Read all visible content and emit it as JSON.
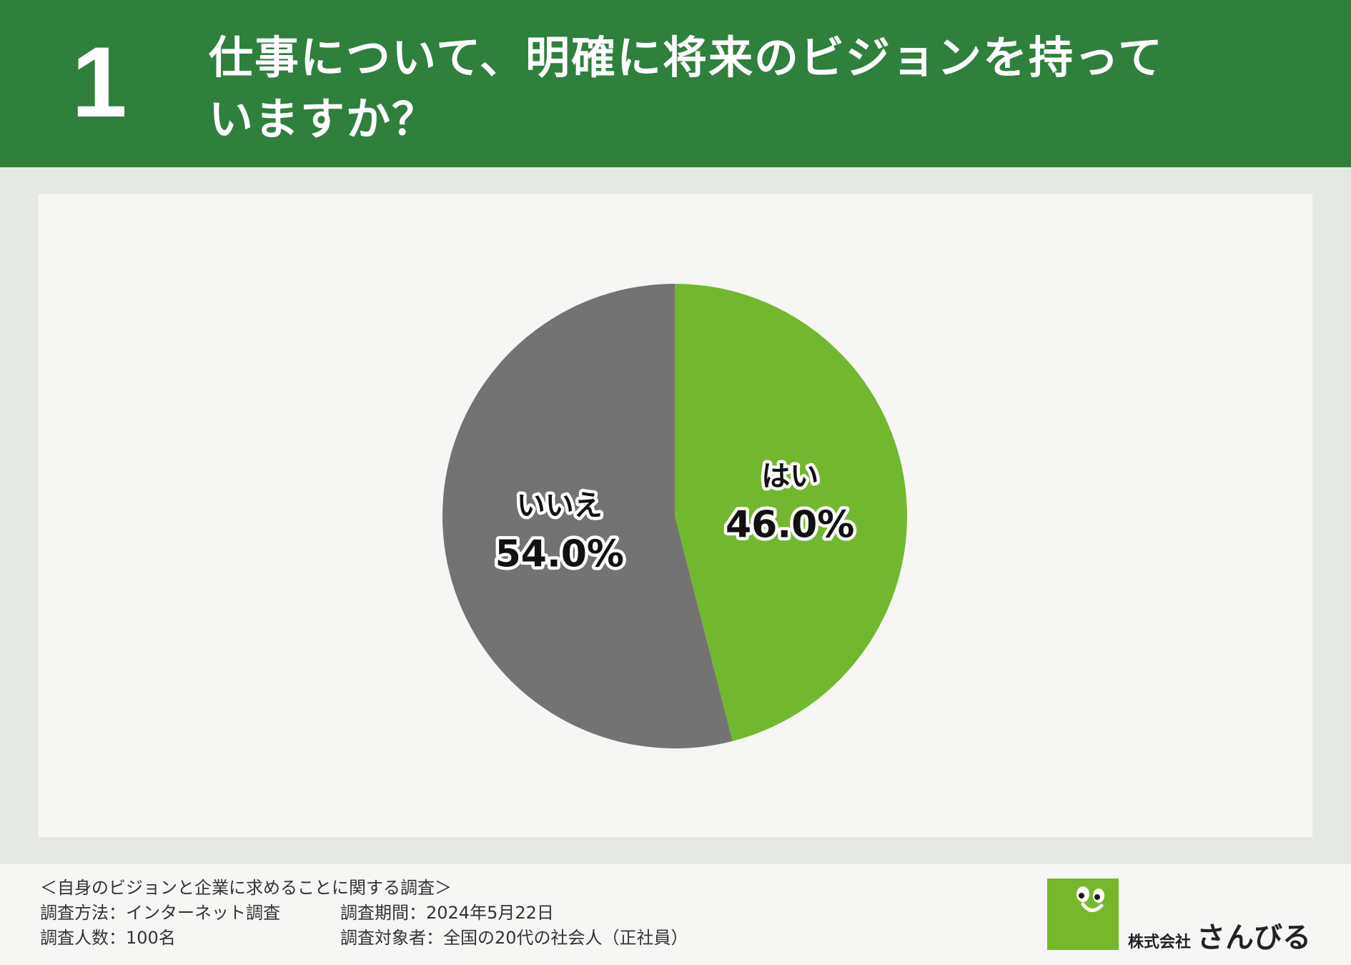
{
  "header": {
    "number": "1",
    "question": "仕事について、明確に将来のビジョンを持っていますか？"
  },
  "chart_data": {
    "type": "pie",
    "categories": [
      "はい",
      "いいえ"
    ],
    "values": [
      46.0,
      54.0
    ],
    "value_labels": [
      "46.0%",
      "54.0%"
    ],
    "colors": [
      "#72b82e",
      "#737373"
    ],
    "start_angle_deg": 0,
    "direction": "clockwise"
  },
  "footer": {
    "survey_title": "＜自身のビジョンと企業に求めることに関する調査＞",
    "method": "調査方法：インターネット調査",
    "period": "調査期間：2024年5月22日",
    "count": "調査人数：100名",
    "target": "調査対象者：全国の20代の社会人（正社員）"
  },
  "logo": {
    "prefix": "株式会社",
    "name": "さんびる"
  }
}
